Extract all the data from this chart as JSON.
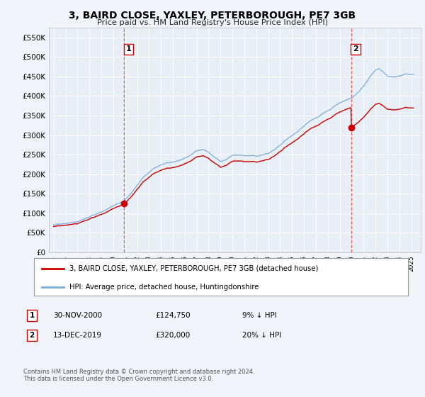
{
  "title": "3, BAIRD CLOSE, YAXLEY, PETERBOROUGH, PE7 3GB",
  "subtitle": "Price paid vs. HM Land Registry's House Price Index (HPI)",
  "background_color": "#f0f4f8",
  "plot_bg_color": "#e8eef5",
  "ylim": [
    0,
    575000
  ],
  "yticks": [
    0,
    50000,
    100000,
    150000,
    200000,
    250000,
    300000,
    350000,
    400000,
    450000,
    500000,
    550000
  ],
  "ytick_labels": [
    "£0",
    "£50K",
    "£100K",
    "£150K",
    "£200K",
    "£250K",
    "£300K",
    "£350K",
    "£400K",
    "£450K",
    "£500K",
    "£550K"
  ],
  "xlim_left": 1994.6,
  "xlim_right": 2025.8,
  "sale1_date": 2000.92,
  "sale1_price": 124750,
  "sale1_label": "1",
  "sale2_date": 2019.95,
  "sale2_price": 320000,
  "sale2_label": "2",
  "red_line_color": "#cc0000",
  "blue_line_color": "#7aacdc",
  "dashed_line_color": "#ee4444",
  "legend_house_label": "3, BAIRD CLOSE, YAXLEY, PETERBOROUGH, PE7 3GB (detached house)",
  "legend_hpi_label": "HPI: Average price, detached house, Huntingdonshire",
  "table_row1": [
    "1",
    "30-NOV-2000",
    "£124,750",
    "9% ↓ HPI"
  ],
  "table_row2": [
    "2",
    "13-DEC-2019",
    "£320,000",
    "20% ↓ HPI"
  ],
  "footnote": "Contains HM Land Registry data © Crown copyright and database right 2024.\nThis data is licensed under the Open Government Licence v3.0.",
  "hpi_anchors": [
    [
      1995.0,
      70000
    ],
    [
      1995.5,
      71000
    ],
    [
      1996.0,
      73000
    ],
    [
      1996.5,
      75000
    ],
    [
      1997.0,
      78000
    ],
    [
      1997.5,
      83000
    ],
    [
      1998.0,
      88000
    ],
    [
      1998.5,
      94000
    ],
    [
      1999.0,
      100000
    ],
    [
      1999.5,
      108000
    ],
    [
      2000.0,
      116000
    ],
    [
      2000.5,
      123000
    ],
    [
      2001.0,
      132000
    ],
    [
      2001.5,
      148000
    ],
    [
      2002.0,
      168000
    ],
    [
      2002.5,
      188000
    ],
    [
      2003.0,
      202000
    ],
    [
      2003.5,
      215000
    ],
    [
      2004.0,
      225000
    ],
    [
      2004.5,
      230000
    ],
    [
      2005.0,
      232000
    ],
    [
      2005.5,
      236000
    ],
    [
      2006.0,
      244000
    ],
    [
      2006.5,
      252000
    ],
    [
      2007.0,
      262000
    ],
    [
      2007.5,
      265000
    ],
    [
      2008.0,
      258000
    ],
    [
      2008.5,
      245000
    ],
    [
      2009.0,
      232000
    ],
    [
      2009.5,
      238000
    ],
    [
      2010.0,
      248000
    ],
    [
      2010.5,
      250000
    ],
    [
      2011.0,
      248000
    ],
    [
      2011.5,
      247000
    ],
    [
      2012.0,
      245000
    ],
    [
      2012.5,
      248000
    ],
    [
      2013.0,
      252000
    ],
    [
      2013.5,
      260000
    ],
    [
      2014.0,
      272000
    ],
    [
      2014.5,
      284000
    ],
    [
      2015.0,
      295000
    ],
    [
      2015.5,
      308000
    ],
    [
      2016.0,
      320000
    ],
    [
      2016.5,
      332000
    ],
    [
      2017.0,
      342000
    ],
    [
      2017.5,
      352000
    ],
    [
      2018.0,
      362000
    ],
    [
      2018.5,
      372000
    ],
    [
      2019.0,
      382000
    ],
    [
      2019.5,
      390000
    ],
    [
      2020.0,
      395000
    ],
    [
      2020.5,
      408000
    ],
    [
      2021.0,
      425000
    ],
    [
      2021.5,
      448000
    ],
    [
      2022.0,
      468000
    ],
    [
      2022.3,
      472000
    ],
    [
      2022.6,
      465000
    ],
    [
      2023.0,
      452000
    ],
    [
      2023.5,
      448000
    ],
    [
      2024.0,
      452000
    ],
    [
      2024.5,
      458000
    ],
    [
      2025.0,
      455000
    ]
  ]
}
